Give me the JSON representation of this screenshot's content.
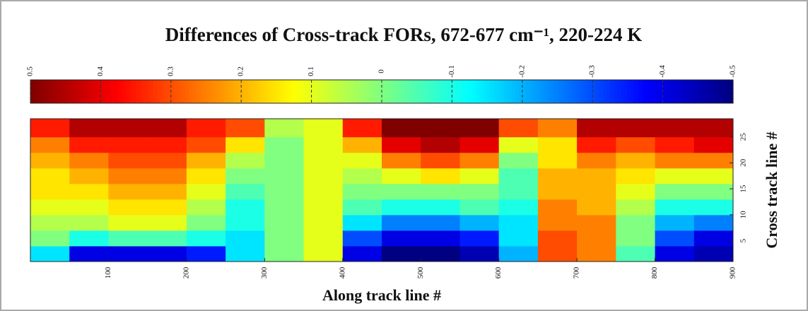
{
  "chart_data": {
    "type": "heatmap",
    "title": "Differences of Cross-track FORs, 672-677 cm⁻¹, 220-224 K",
    "x_label": "Along track line #",
    "y_label": "Cross track line #",
    "colormap": "jet",
    "clim": [
      0.5,
      -0.5
    ],
    "colorbar_ticks": [
      0.5,
      0.4,
      0.3,
      0.2,
      0.1,
      0,
      -0.1,
      -0.2,
      -0.3,
      -0.4,
      -0.5
    ],
    "xlim": [
      0,
      900
    ],
    "ylim": [
      1,
      28.5
    ],
    "xticks": [
      100,
      200,
      300,
      400,
      500,
      600,
      700,
      800,
      900
    ],
    "yticks": [
      5,
      10,
      15,
      20,
      25
    ],
    "x_edges": [
      0,
      50,
      100,
      150,
      200,
      250,
      300,
      350,
      400,
      450,
      500,
      550,
      600,
      650,
      700,
      750,
      800,
      850,
      900
    ],
    "y_edges": [
      1,
      4,
      7,
      10,
      13,
      16,
      19,
      22,
      25,
      28.5
    ],
    "z": [
      [
        -0.15,
        -0.4,
        -0.4,
        -0.4,
        -0.35,
        -0.15,
        0.0,
        0.1,
        -0.4,
        -0.5,
        -0.5,
        -0.45,
        -0.2,
        0.3,
        0.25,
        -0.05,
        -0.4,
        -0.45
      ],
      [
        0.0,
        -0.1,
        -0.05,
        -0.05,
        -0.1,
        -0.15,
        0.0,
        0.1,
        -0.3,
        -0.4,
        -0.4,
        -0.35,
        -0.15,
        0.3,
        0.25,
        0.0,
        -0.3,
        -0.4
      ],
      [
        0.05,
        0.05,
        0.1,
        0.1,
        0.0,
        -0.1,
        0.0,
        0.1,
        -0.15,
        -0.25,
        -0.25,
        -0.2,
        -0.15,
        0.25,
        0.25,
        0.0,
        -0.2,
        -0.25
      ],
      [
        0.1,
        0.1,
        0.15,
        0.15,
        0.05,
        -0.1,
        0.0,
        0.1,
        -0.05,
        -0.1,
        -0.1,
        -0.05,
        -0.1,
        0.25,
        0.2,
        0.05,
        -0.1,
        -0.1
      ],
      [
        0.15,
        0.15,
        0.2,
        0.2,
        0.1,
        -0.05,
        0.0,
        0.1,
        0.0,
        0.0,
        0.0,
        0.0,
        -0.05,
        0.2,
        0.2,
        0.1,
        0.0,
        0.0
      ],
      [
        0.15,
        0.2,
        0.25,
        0.25,
        0.15,
        0.0,
        0.0,
        0.1,
        0.05,
        0.1,
        0.15,
        0.1,
        -0.05,
        0.2,
        0.2,
        0.15,
        0.1,
        0.1
      ],
      [
        0.2,
        0.25,
        0.3,
        0.3,
        0.2,
        0.05,
        0.0,
        0.1,
        0.1,
        0.25,
        0.3,
        0.25,
        0.0,
        0.15,
        0.25,
        0.2,
        0.25,
        0.25
      ],
      [
        0.25,
        0.35,
        0.35,
        0.35,
        0.3,
        0.15,
        0.0,
        0.1,
        0.2,
        0.4,
        0.45,
        0.4,
        0.1,
        0.15,
        0.35,
        0.3,
        0.35,
        0.4
      ],
      [
        0.35,
        0.45,
        0.45,
        0.45,
        0.35,
        0.3,
        0.05,
        0.1,
        0.35,
        0.5,
        0.5,
        0.5,
        0.3,
        0.25,
        0.45,
        0.45,
        0.45,
        0.45
      ]
    ]
  }
}
